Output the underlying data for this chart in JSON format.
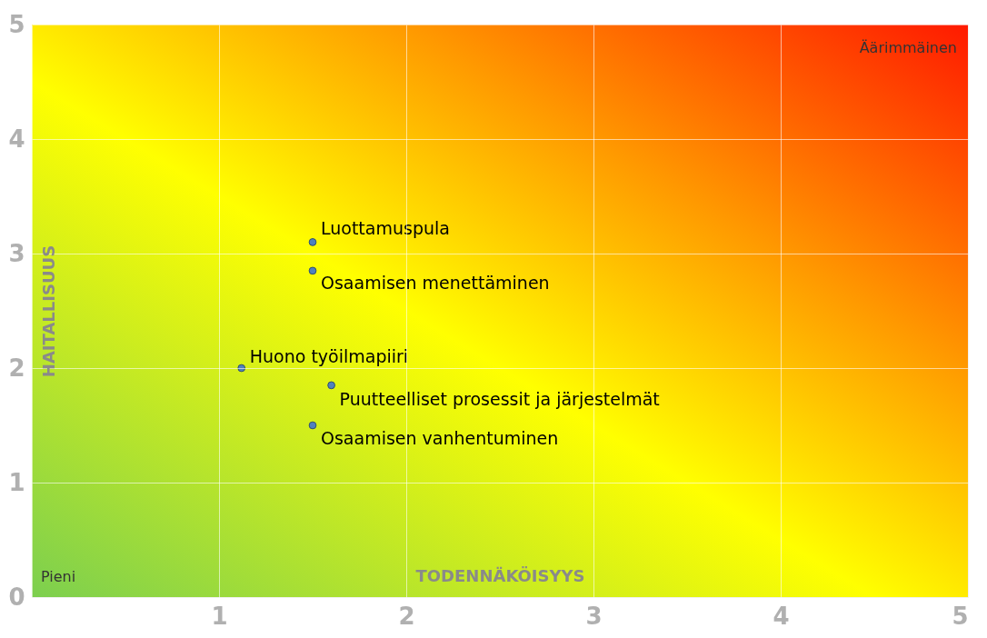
{
  "chart_data": {
    "type": "scatter",
    "xlabel": "TODENNÄKÖISYYS",
    "ylabel": "HAITALLISUUS",
    "x": [
      1.5,
      1.5,
      1.12,
      1.6,
      1.5
    ],
    "series": [
      {
        "color": "#4f81bd",
        "values": [
          3.1,
          2.85,
          2.0,
          1.85,
          1.5
        ]
      }
    ],
    "xlim": [
      0,
      5
    ],
    "ylim": [
      0,
      5
    ],
    "xticks": [
      {
        "value": 0,
        "label": null
      },
      1,
      2,
      3,
      4,
      5
    ],
    "yticks": [
      0,
      1,
      2,
      3,
      4,
      5
    ],
    "grid": true,
    "marker": "circle",
    "annotations": [
      {
        "text": "Luottamuspula",
        "x": 1.5,
        "y": 3.1
      },
      {
        "text": "Osaamisen menettäminen",
        "x": 1.5,
        "y": 2.85
      },
      {
        "text": "Huono työilmapiiri",
        "x": 1.12,
        "y": 2.0
      },
      {
        "text": "Puutteelliset prosessit ja järjestelmät",
        "x": 1.6,
        "y": 1.85
      },
      {
        "text": "Osaamisen vanhentuminen",
        "x": 1.5,
        "y": 1.5
      },
      "Pieni",
      "Äärimmäinen"
    ]
  }
}
